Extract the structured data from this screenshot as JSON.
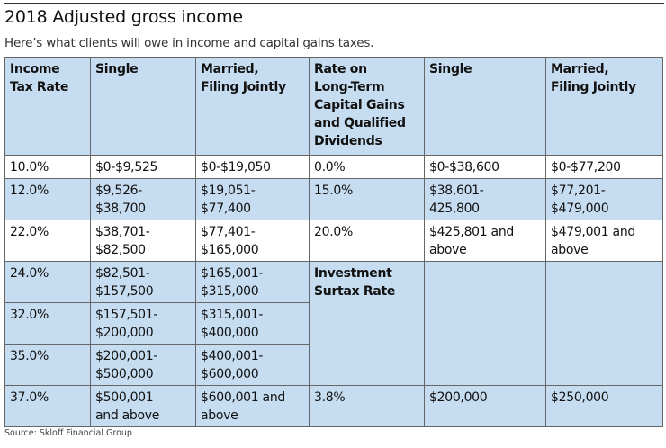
{
  "title": "2018 Adjusted gross income",
  "subtitle": "Here’s what clients will owe in income and capital gains taxes.",
  "headers": [
    "Income\nTax Rate",
    "Single",
    "Married,\nFiling Jointly",
    "Rate on\nLong-Term\nCapital Gains\nand Qualified\nDividends",
    "Single",
    "Married,\nFiling Jointly"
  ],
  "rows": [
    {
      "rate": "10.0%",
      "single": "$0-$9,525",
      "married": "$0-$19,050",
      "cg_rate": "0.0%",
      "cg_single": "$0-$38,600",
      "cg_married": "$0-$77,200"
    },
    {
      "rate": "12.0%",
      "single": "$9,526-\n$38,700",
      "married": "$19,051-\n$77,400",
      "cg_rate": "15.0%",
      "cg_single": "$38,601-\n425,800",
      "cg_married": "$77,201-\n$479,000"
    },
    {
      "rate": "22.0%",
      "single": "$38,701-\n$82,500",
      "married": "$77,401-\n$165,000",
      "cg_rate": "20.0%",
      "cg_single": "$425,801 and\nabove",
      "cg_married": "$479,001 and\nabove"
    },
    {
      "rate": "24.0%",
      "single": "$82,501-\n$157,500",
      "married": "$165,001-\n$315,000"
    },
    {
      "rate": "32.0%",
      "single": "$157,501-\n$200,000",
      "married": "$315,001-\n$400,000"
    },
    {
      "rate": "35.0%",
      "single": "$200,001-\n$500,000",
      "married": "$400,001-\n$600,000"
    },
    {
      "rate": "37.0%",
      "single": "$500,001\nand above",
      "married": "$600,001 and\nabove",
      "cg_rate": "3.8%",
      "cg_single": "$200,000",
      "cg_married": "$250,000"
    }
  ],
  "surtax_label": "Investment\nSurtax Rate",
  "source": "Source: Skloff Financial Group",
  "colors": {
    "row_blue": "#c6dcf0",
    "border": "#666666"
  }
}
